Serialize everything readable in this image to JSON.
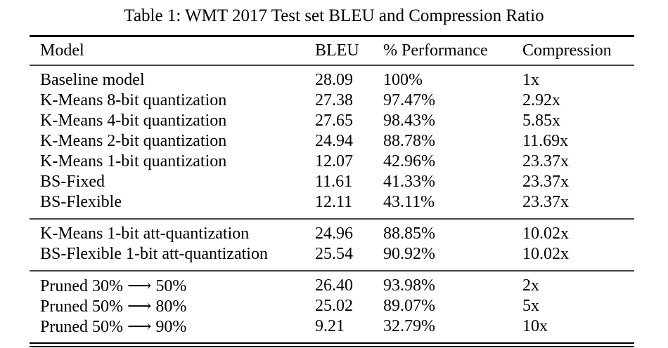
{
  "title": "Table 1: WMT 2017 Test set BLEU and Compression Ratio",
  "table": {
    "columns": [
      "Model",
      "BLEU",
      "% Performance",
      "Compression"
    ],
    "sections": [
      {
        "rows": [
          [
            "Baseline model",
            "28.09",
            "100%",
            "1x"
          ],
          [
            "K-Means 8-bit quantization",
            "27.38",
            "97.47%",
            "2.92x"
          ],
          [
            "K-Means 4-bit quantization",
            "27.65",
            "98.43%",
            "5.85x"
          ],
          [
            "K-Means 2-bit quantization",
            "24.94",
            "88.78%",
            "11.69x"
          ],
          [
            "K-Means 1-bit quantization",
            "12.07",
            "42.96%",
            "23.37x"
          ],
          [
            "BS-Fixed",
            "11.61",
            "41.33%",
            "23.37x"
          ],
          [
            "BS-Flexible",
            "12.11",
            "43.11%",
            "23.37x"
          ]
        ]
      },
      {
        "rows": [
          [
            "K-Means 1-bit att-quantization",
            "24.96",
            "88.85%",
            "10.02x"
          ],
          [
            "BS-Flexible 1-bit att-quantization",
            "25.54",
            "90.92%",
            "10.02x"
          ]
        ]
      },
      {
        "rows": [
          [
            "Pruned 30% ⟶ 50%",
            "26.40",
            "93.98%",
            "2x"
          ],
          [
            "Pruned 50% ⟶ 80%",
            "25.02",
            "89.07%",
            "5x"
          ],
          [
            "Pruned 50% ⟶ 90%",
            "9.21",
            "32.79%",
            "10x"
          ]
        ]
      }
    ]
  },
  "colors": {
    "background": "#ffffff",
    "text": "#000000",
    "rule_heavy": "#000000",
    "rule_light": "#454545"
  }
}
